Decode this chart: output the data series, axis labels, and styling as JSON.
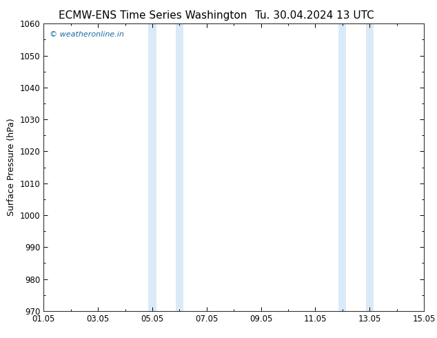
{
  "title_left": "ECMW-ENS Time Series Washington",
  "title_right": "Tu. 30.04.2024 13 UTC",
  "ylabel": "Surface Pressure (hPa)",
  "ylim": [
    970,
    1060
  ],
  "yticks": [
    970,
    980,
    990,
    1000,
    1010,
    1020,
    1030,
    1040,
    1050,
    1060
  ],
  "xlim": [
    0,
    14
  ],
  "xtick_positions": [
    0,
    2,
    4,
    6,
    8,
    10,
    12,
    14
  ],
  "xtick_labels": [
    "01.05",
    "03.05",
    "05.05",
    "07.05",
    "09.05",
    "11.05",
    "13.05",
    "15.05"
  ],
  "background_color": "#ffffff",
  "plot_bg_color": "#ffffff",
  "shade_regions": [
    {
      "x_start": 3.857,
      "x_end": 4.143,
      "color": "#daeaf7"
    },
    {
      "x_start": 4.857,
      "x_end": 5.143,
      "color": "#daeaf7"
    },
    {
      "x_start": 10.857,
      "x_end": 11.143,
      "color": "#daeaf7"
    },
    {
      "x_start": 11.857,
      "x_end": 12.143,
      "color": "#daeaf7"
    }
  ],
  "watermark_text": "© weatheronline.in",
  "watermark_color": "#1a6aa0",
  "title_fontsize": 11,
  "tick_fontsize": 8.5,
  "ylabel_fontsize": 9
}
